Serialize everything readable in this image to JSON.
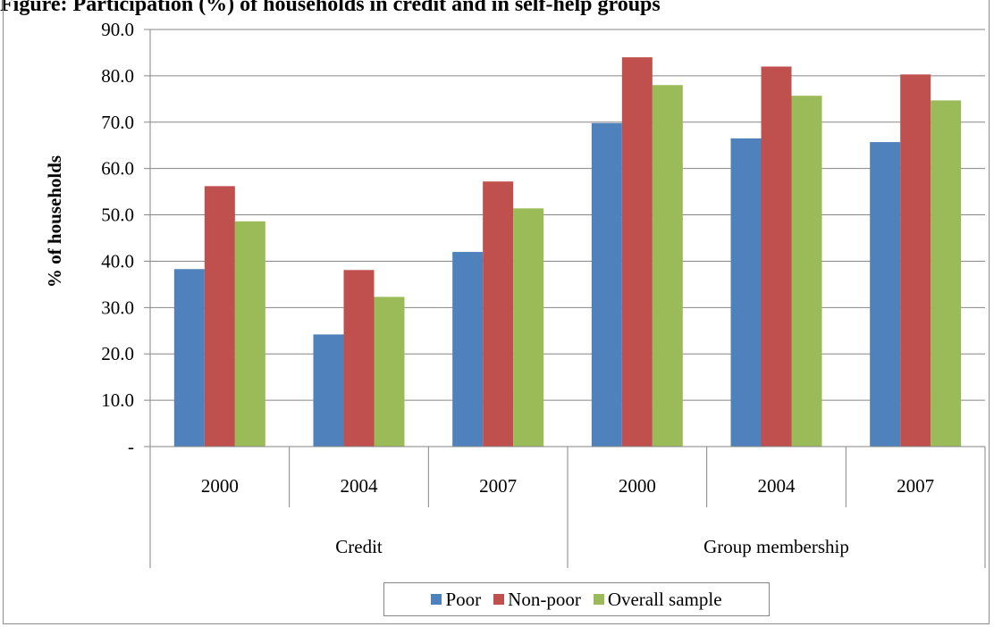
{
  "title": "Figure: Participation (%) of households in credit and in self-help groups",
  "chart_data": {
    "type": "bar",
    "ylabel": "% of households",
    "xlabel": "",
    "ylim": [
      0,
      90
    ],
    "ytick_labels": [
      "-",
      "10.0",
      "20.0",
      "30.0",
      "40.0",
      "50.0",
      "60.0",
      "70.0",
      "80.0",
      "90.0"
    ],
    "categories": [
      "2000",
      "2004",
      "2007",
      "2000",
      "2004",
      "2007"
    ],
    "groups": [
      {
        "label": "Credit",
        "categories": [
          "2000",
          "2004",
          "2007"
        ]
      },
      {
        "label": "Group membership",
        "categories": [
          "2000",
          "2004",
          "2007"
        ]
      }
    ],
    "series": [
      {
        "name": "Poor",
        "color": "#4f81bd",
        "values": [
          38.3,
          24.2,
          42.0,
          69.8,
          66.5,
          65.7
        ]
      },
      {
        "name": "Non-poor",
        "color": "#c0504d",
        "values": [
          56.2,
          38.1,
          57.2,
          84.0,
          82.0,
          80.3
        ]
      },
      {
        "name": "Overall sample",
        "color": "#9bbb59",
        "values": [
          48.6,
          32.3,
          51.4,
          78.0,
          75.7,
          74.7
        ]
      }
    ],
    "grid": true,
    "legend": "bottom"
  }
}
